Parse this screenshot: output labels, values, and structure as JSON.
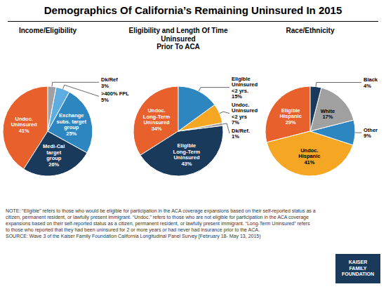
{
  "title": "Demographics Of California’s Remaining Uninsured In 2015",
  "note": "NOTE: “Eligible” refers to those who would be eligible for participation in the ACA coverage expansions based on their self-reported status as a\ncitizen, permanent resident, or lawfully present immigrant. “Undoc.” refers to those who are not eligible for participation in the ACA coverage\nexpansions based on their self-reported status as a citizen, permanent resident, or lawfully present immigrant. “Long-Term Uninsured” refers\nto those who reported that they had been uninsured for 2 or more years or had never had insurance prior to the ACA.\nSOURCE: Wave 3 of the Kaiser Family Foundation California Longitudinal Panel Survey [February 18- May 13, 2015)",
  "annotations": [
    "KAISER",
    "FAMILY",
    "FOUNDATION"
  ],
  "chart_data": [
    {
      "type": "pie",
      "subtitle": "Income/Eligibility",
      "categories": [
        "Undoc.\nUninsured",
        "Medi-Cal\ntarget\ngroup",
        "Exchange\nsubs. target\ngroup",
        ">400% FPL",
        "Dk/Ref"
      ],
      "values": [
        41,
        26,
        25,
        5,
        3
      ],
      "value_labels": [
        "41%",
        "26%",
        "25%",
        "5%",
        "3%"
      ],
      "colors": [
        "#E8612C",
        "#1A3A5C",
        "#2E86C1",
        "#5DADE2",
        "#A0A0A0"
      ],
      "data_labels": true
    },
    {
      "type": "pie",
      "subtitle": "Eligibility and Length Of Time Uninsured\nPrior To ACA",
      "categories": [
        "Undoc.\nLong-Term\nUninsured",
        "Eligible\nLong-Term\nUninsured",
        "Dk/Ref.",
        "Undoc.\nUninsured\n<2 yrs",
        "Eligible\nUninsured\n<2 yrs."
      ],
      "values": [
        34,
        43,
        1,
        7,
        15
      ],
      "value_labels": [
        "34%",
        "43%",
        "1%",
        "7%",
        "15%"
      ],
      "colors": [
        "#E8612C",
        "#1A3A5C",
        "#A0A0A0",
        "#F5A623",
        "#2E86C1"
      ],
      "data_labels": true
    },
    {
      "type": "pie",
      "subtitle": "Race/Ethnicity",
      "categories": [
        "Eligible\nHispanic",
        "Undoc.\nHispanic",
        "Other",
        "White",
        "Black"
      ],
      "values": [
        29,
        41,
        9,
        17,
        4
      ],
      "value_labels": [
        "29%",
        "41%",
        "9%",
        "17%",
        "4%"
      ],
      "colors": [
        "#E8612C",
        "#F5A623",
        "#2E86C1",
        "#A0A0A0",
        "#1A3A5C"
      ],
      "data_labels": true
    }
  ]
}
